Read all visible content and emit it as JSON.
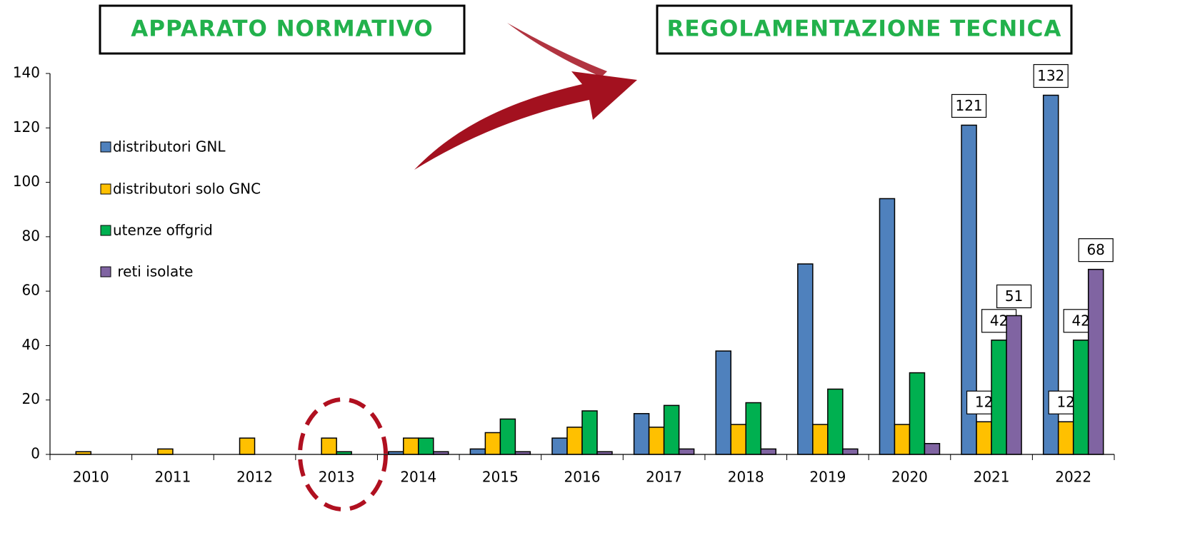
{
  "chart_data": {
    "type": "bar",
    "annotations": [
      "APPARATO NORMATIVO",
      "REGOLAMENTAZIONE TECNICA"
    ],
    "categories": [
      "2010",
      "2011",
      "2012",
      "2013",
      "2014",
      "2015",
      "2016",
      "2017",
      "2018",
      "2019",
      "2020",
      "2021",
      "2022"
    ],
    "series": [
      {
        "name": "distributori GNL",
        "color": "#4f81bd",
        "values": [
          0,
          0,
          0,
          0,
          1,
          2,
          6,
          15,
          38,
          70,
          94,
          121,
          132
        ],
        "value_labels": [
          null,
          null,
          null,
          null,
          null,
          null,
          null,
          null,
          null,
          null,
          null,
          "121",
          "132"
        ]
      },
      {
        "name": "distributori solo GNC",
        "color": "#ffc000",
        "values": [
          1,
          2,
          6,
          6,
          6,
          8,
          10,
          10,
          11,
          11,
          11,
          12,
          12
        ],
        "value_labels": [
          null,
          null,
          null,
          null,
          null,
          null,
          null,
          null,
          null,
          null,
          null,
          "12",
          "12"
        ]
      },
      {
        "name": "utenze offgrid",
        "color": "#00b050",
        "values": [
          0,
          0,
          0,
          1,
          6,
          13,
          16,
          18,
          19,
          24,
          30,
          42,
          42
        ],
        "value_labels": [
          null,
          null,
          null,
          null,
          null,
          null,
          null,
          null,
          null,
          null,
          null,
          "42",
          "42"
        ]
      },
      {
        "name": " reti isolate",
        "color": "#8064a2",
        "values": [
          0,
          0,
          0,
          0,
          1,
          1,
          1,
          2,
          2,
          2,
          4,
          51,
          68
        ],
        "value_labels": [
          null,
          null,
          null,
          null,
          null,
          null,
          null,
          null,
          null,
          null,
          null,
          "51",
          "68"
        ]
      }
    ],
    "ylim": [
      0,
      140
    ],
    "yticks": [
      0,
      20,
      40,
      60,
      80,
      100,
      120,
      140
    ],
    "grid": false,
    "legend": "left"
  }
}
